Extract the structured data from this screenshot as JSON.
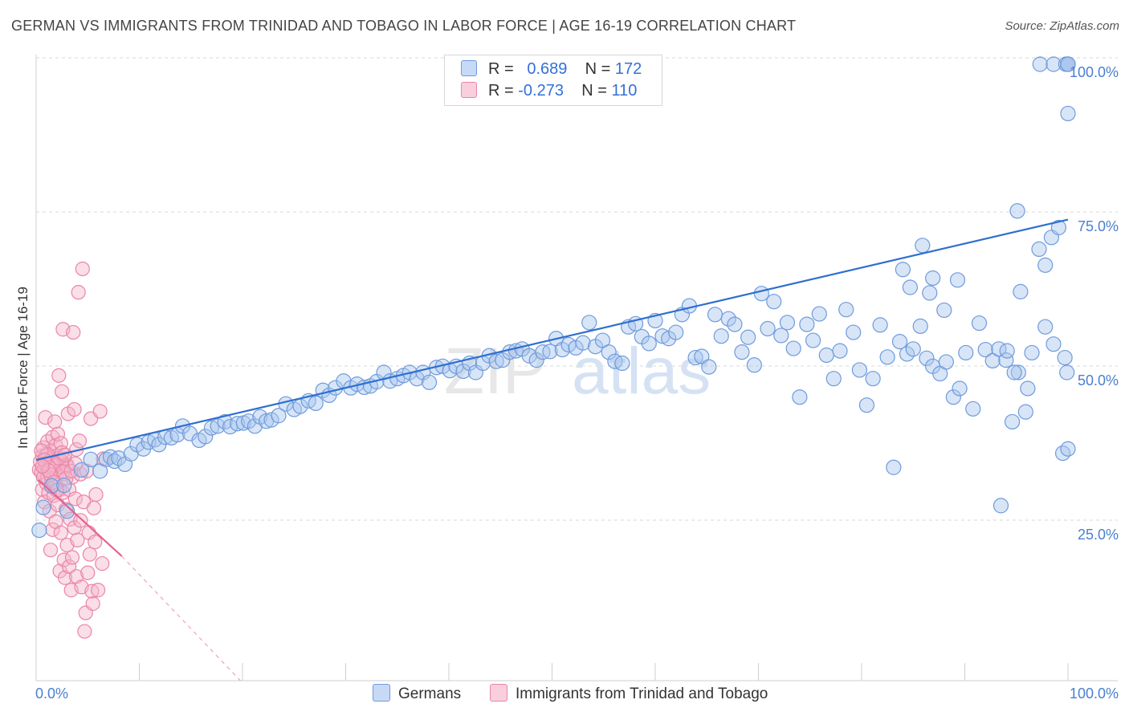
{
  "title": "GERMAN VS IMMIGRANTS FROM TRINIDAD AND TOBAGO IN LABOR FORCE | AGE 16-19 CORRELATION CHART",
  "source": "Source: ZipAtlas.com",
  "watermark": {
    "left": "ZIP",
    "right": "atlas"
  },
  "colors": {
    "blue_fill": "#a9c6ee",
    "blue_stroke": "#6e9bdc",
    "blue_line": "#2e6fd0",
    "pink_fill": "#f5b6cb",
    "pink_stroke": "#ea86a6",
    "pink_line": "#e2648d",
    "tick_label": "#4a7fd0",
    "grid": "#d9d9d9"
  },
  "legend": {
    "rows": [
      {
        "r_label": "R =",
        "r_value": "0.689",
        "n_label": "N =",
        "n_value": "172",
        "color": "#a9c6ee",
        "border": "#6e9bdc"
      },
      {
        "r_label": "R =",
        "r_value": "-0.273",
        "n_label": "N =",
        "n_value": "110",
        "color": "#f5b6cb",
        "border": "#ea86a6"
      }
    ]
  },
  "bottom_legend": [
    {
      "label": "Germans",
      "color": "#a9c6ee",
      "border": "#6e9bdc"
    },
    {
      "label": "Immigrants from Trinidad and Tobago",
      "color": "#f5b6cb",
      "border": "#ea86a6"
    }
  ],
  "chart_data": {
    "type": "scatter",
    "title": "GERMAN VS IMMIGRANTS FROM TRINIDAD AND TOBAGO IN LABOR FORCE | AGE 16-19 CORRELATION CHART",
    "xlabel": "",
    "ylabel": "In Labor Force | Age 16-19",
    "xlim": [
      0,
      100
    ],
    "ylim": [
      0,
      100
    ],
    "x_tick_labels": [
      "0.0%",
      "100.0%"
    ],
    "y_tick_labels": [
      "25.0%",
      "50.0%",
      "75.0%",
      "100.0%"
    ],
    "y_ticks": [
      25,
      50,
      75,
      100
    ],
    "grid": true,
    "legend_position": "top-center",
    "series": [
      {
        "name": "Germans",
        "r": 0.689,
        "n": 172,
        "trend": {
          "x": [
            0,
            100
          ],
          "y": [
            35.8,
            74.8
          ]
        },
        "points": [
          [
            0.3,
            24.4
          ],
          [
            0.7,
            28.1
          ],
          [
            1.5,
            31.6
          ],
          [
            2.7,
            31.7
          ],
          [
            3.0,
            27.5
          ],
          [
            4.4,
            34.2
          ],
          [
            5.3,
            35.9
          ],
          [
            6.2,
            34.0
          ],
          [
            6.8,
            35.9
          ],
          [
            7.2,
            36.3
          ],
          [
            7.6,
            35.6
          ],
          [
            8.0,
            36.1
          ],
          [
            8.6,
            35.1
          ],
          [
            9.2,
            36.8
          ],
          [
            9.8,
            38.3
          ],
          [
            10.4,
            37.6
          ],
          [
            10.9,
            38.7
          ],
          [
            11.5,
            39.1
          ],
          [
            11.9,
            38.3
          ],
          [
            12.5,
            39.5
          ],
          [
            13.1,
            39.4
          ],
          [
            13.7,
            39.9
          ],
          [
            14.2,
            41.3
          ],
          [
            14.9,
            40.1
          ],
          [
            15.8,
            39.0
          ],
          [
            16.4,
            39.6
          ],
          [
            17.0,
            41.0
          ],
          [
            17.6,
            41.3
          ],
          [
            18.3,
            42.0
          ],
          [
            18.8,
            41.2
          ],
          [
            19.5,
            41.7
          ],
          [
            20.1,
            41.8
          ],
          [
            20.6,
            42.1
          ],
          [
            21.2,
            41.3
          ],
          [
            21.7,
            42.8
          ],
          [
            22.3,
            42.1
          ],
          [
            22.8,
            42.3
          ],
          [
            23.5,
            43.0
          ],
          [
            24.2,
            44.9
          ],
          [
            25.0,
            44.0
          ],
          [
            25.6,
            44.5
          ],
          [
            26.4,
            45.4
          ],
          [
            27.1,
            45.0
          ],
          [
            27.8,
            47.1
          ],
          [
            28.4,
            46.3
          ],
          [
            29.0,
            47.5
          ],
          [
            29.8,
            48.6
          ],
          [
            30.5,
            47.5
          ],
          [
            31.1,
            48.1
          ],
          [
            31.8,
            47.6
          ],
          [
            32.4,
            47.8
          ],
          [
            33.0,
            48.5
          ],
          [
            33.7,
            50.0
          ],
          [
            34.3,
            48.6
          ],
          [
            35.0,
            49.0
          ],
          [
            35.6,
            49.5
          ],
          [
            36.2,
            50.0
          ],
          [
            36.9,
            49.0
          ],
          [
            37.5,
            50.0
          ],
          [
            38.1,
            48.4
          ],
          [
            38.8,
            50.8
          ],
          [
            39.4,
            51.0
          ],
          [
            40.1,
            50.3
          ],
          [
            40.7,
            51.0
          ],
          [
            41.4,
            50.2
          ],
          [
            42.0,
            51.5
          ],
          [
            42.6,
            50.0
          ],
          [
            43.3,
            51.5
          ],
          [
            43.9,
            52.7
          ],
          [
            44.6,
            51.8
          ],
          [
            45.2,
            52.0
          ],
          [
            45.9,
            53.3
          ],
          [
            46.5,
            53.5
          ],
          [
            47.1,
            53.8
          ],
          [
            47.8,
            52.7
          ],
          [
            48.5,
            52.0
          ],
          [
            49.1,
            53.3
          ],
          [
            49.8,
            53.4
          ],
          [
            50.4,
            55.5
          ],
          [
            51.0,
            53.7
          ],
          [
            51.6,
            54.5
          ],
          [
            52.3,
            54.0
          ],
          [
            53.0,
            54.8
          ],
          [
            53.6,
            58.1
          ],
          [
            54.2,
            54.2
          ],
          [
            54.9,
            55.2
          ],
          [
            55.5,
            53.3
          ],
          [
            56.1,
            51.8
          ],
          [
            56.8,
            51.5
          ],
          [
            57.4,
            57.4
          ],
          [
            58.1,
            57.9
          ],
          [
            58.7,
            55.8
          ],
          [
            59.4,
            54.7
          ],
          [
            60.0,
            58.4
          ],
          [
            60.7,
            55.9
          ],
          [
            61.3,
            55.5
          ],
          [
            62.0,
            56.5
          ],
          [
            62.6,
            59.4
          ],
          [
            63.3,
            60.8
          ],
          [
            63.9,
            52.4
          ],
          [
            64.5,
            52.6
          ],
          [
            65.2,
            50.9
          ],
          [
            65.8,
            59.4
          ],
          [
            66.4,
            55.9
          ],
          [
            67.1,
            58.7
          ],
          [
            67.7,
            57.8
          ],
          [
            68.4,
            53.3
          ],
          [
            69.0,
            55.7
          ],
          [
            69.6,
            51.2
          ],
          [
            70.3,
            62.8
          ],
          [
            70.9,
            57.1
          ],
          [
            71.5,
            61.5
          ],
          [
            72.2,
            56.0
          ],
          [
            72.8,
            58.1
          ],
          [
            73.4,
            53.9
          ],
          [
            74.0,
            46.0
          ],
          [
            74.7,
            57.8
          ],
          [
            75.3,
            55.2
          ],
          [
            75.9,
            59.5
          ],
          [
            76.6,
            52.8
          ],
          [
            77.3,
            49.0
          ],
          [
            77.9,
            53.5
          ],
          [
            78.5,
            60.2
          ],
          [
            79.2,
            56.5
          ],
          [
            79.8,
            50.4
          ],
          [
            80.5,
            44.7
          ],
          [
            81.1,
            49.0
          ],
          [
            81.8,
            57.7
          ],
          [
            82.5,
            52.5
          ],
          [
            83.1,
            34.6
          ],
          [
            83.7,
            55.0
          ],
          [
            84.4,
            53.0
          ],
          [
            85.0,
            53.8
          ],
          [
            85.7,
            57.5
          ],
          [
            86.3,
            52.3
          ],
          [
            86.9,
            51.0
          ],
          [
            87.6,
            49.8
          ],
          [
            88.2,
            51.7
          ],
          [
            88.9,
            46.0
          ],
          [
            89.5,
            47.4
          ],
          [
            90.1,
            53.2
          ],
          [
            90.8,
            44.1
          ],
          [
            91.4,
            58.0
          ],
          [
            92.0,
            53.7
          ],
          [
            92.7,
            51.9
          ],
          [
            93.3,
            53.8
          ],
          [
            94.0,
            52.0
          ],
          [
            94.6,
            42.0
          ],
          [
            95.2,
            50.0
          ],
          [
            95.9,
            43.6
          ],
          [
            96.5,
            53.2
          ],
          [
            97.2,
            70.0
          ],
          [
            97.8,
            67.4
          ],
          [
            98.4,
            71.9
          ],
          [
            99.1,
            73.5
          ],
          [
            99.7,
            52.4
          ],
          [
            85.9,
            70.6
          ],
          [
            86.9,
            65.3
          ],
          [
            84.0,
            66.7
          ],
          [
            84.7,
            63.8
          ],
          [
            86.6,
            62.9
          ],
          [
            88.0,
            60.1
          ],
          [
            89.3,
            65.0
          ],
          [
            95.4,
            63.1
          ],
          [
            97.8,
            57.4
          ],
          [
            98.6,
            54.6
          ],
          [
            99.5,
            36.9
          ],
          [
            100.0,
            37.6
          ],
          [
            94.1,
            53.5
          ],
          [
            93.5,
            28.4
          ],
          [
            94.8,
            50.0
          ],
          [
            96.1,
            47.4
          ],
          [
            95.1,
            76.2
          ],
          [
            99.9,
            50.0
          ],
          [
            97.3,
            100.0
          ],
          [
            98.6,
            100.0
          ],
          [
            99.8,
            100.0
          ],
          [
            100.0,
            100.0
          ],
          [
            100.0,
            100.0
          ],
          [
            100.0,
            100.0
          ],
          [
            100.0,
            100.0
          ],
          [
            100.0,
            92.0
          ]
        ]
      },
      {
        "name": "Immigrants from Trinidad and Tobago",
        "r": -0.273,
        "n": 110,
        "trend_solid": {
          "x": [
            0.2,
            8.3
          ],
          "y": [
            32.6,
            20.2
          ]
        },
        "trend_dashed": {
          "x": [
            8.3,
            19.8
          ],
          "y": [
            20.2,
            0
          ]
        },
        "points": [
          [
            0.3,
            34.2
          ],
          [
            0.4,
            35.5
          ],
          [
            0.5,
            33.8
          ],
          [
            0.6,
            36.5
          ],
          [
            0.6,
            31.0
          ],
          [
            0.7,
            37.8
          ],
          [
            0.8,
            34.5
          ],
          [
            0.8,
            29.0
          ],
          [
            0.9,
            42.7
          ],
          [
            1.0,
            35.0
          ],
          [
            1.0,
            32.0
          ],
          [
            1.1,
            38.8
          ],
          [
            1.1,
            33.0
          ],
          [
            1.2,
            36.0
          ],
          [
            1.2,
            30.5
          ],
          [
            1.3,
            34.8
          ],
          [
            1.3,
            27.5
          ],
          [
            1.4,
            37.2
          ],
          [
            1.4,
            21.2
          ],
          [
            1.5,
            35.5
          ],
          [
            1.5,
            32.5
          ],
          [
            1.6,
            39.5
          ],
          [
            1.6,
            24.5
          ],
          [
            1.7,
            36.0
          ],
          [
            1.7,
            30.0
          ],
          [
            1.8,
            42.0
          ],
          [
            1.8,
            34.0
          ],
          [
            1.9,
            38.2
          ],
          [
            1.9,
            25.8
          ],
          [
            2.0,
            36.5
          ],
          [
            2.0,
            33.0
          ],
          [
            2.1,
            40.0
          ],
          [
            2.1,
            28.5
          ],
          [
            2.2,
            35.5
          ],
          [
            2.2,
            49.5
          ],
          [
            2.3,
            31.0
          ],
          [
            2.3,
            17.8
          ],
          [
            2.4,
            38.5
          ],
          [
            2.4,
            24.0
          ],
          [
            2.5,
            34.7
          ],
          [
            2.5,
            46.9
          ],
          [
            2.6,
            57.0
          ],
          [
            2.6,
            30.5
          ],
          [
            2.7,
            36.0
          ],
          [
            2.7,
            19.6
          ],
          [
            2.8,
            33.5
          ],
          [
            2.8,
            16.7
          ],
          [
            2.9,
            27.8
          ],
          [
            3.0,
            35.0
          ],
          [
            3.0,
            22.0
          ],
          [
            3.1,
            43.3
          ],
          [
            3.2,
            31.0
          ],
          [
            3.2,
            18.5
          ],
          [
            3.3,
            26.2
          ],
          [
            3.4,
            14.7
          ],
          [
            3.5,
            33.0
          ],
          [
            3.5,
            20.0
          ],
          [
            3.6,
            56.5
          ],
          [
            3.7,
            44.0
          ],
          [
            3.7,
            24.8
          ],
          [
            3.8,
            29.5
          ],
          [
            3.9,
            37.5
          ],
          [
            3.9,
            16.9
          ],
          [
            4.0,
            22.8
          ],
          [
            4.1,
            63.0
          ],
          [
            4.2,
            38.9
          ],
          [
            4.3,
            33.5
          ],
          [
            4.3,
            26.0
          ],
          [
            4.4,
            15.2
          ],
          [
            4.5,
            66.8
          ],
          [
            4.6,
            29.0
          ],
          [
            4.7,
            8.0
          ],
          [
            4.8,
            11.0
          ],
          [
            4.9,
            34.0
          ],
          [
            5.0,
            17.5
          ],
          [
            5.1,
            24.0
          ],
          [
            5.2,
            20.5
          ],
          [
            5.3,
            42.5
          ],
          [
            5.4,
            14.5
          ],
          [
            5.5,
            12.5
          ],
          [
            5.6,
            28.0
          ],
          [
            5.7,
            22.5
          ],
          [
            5.8,
            30.2
          ],
          [
            6.0,
            14.7
          ],
          [
            6.2,
            43.7
          ],
          [
            6.4,
            19.0
          ],
          [
            6.5,
            36.0
          ],
          [
            0.9,
            36.5
          ],
          [
            1.3,
            34.6
          ],
          [
            1.8,
            34.9
          ],
          [
            2.4,
            35.6
          ],
          [
            3.0,
            34.8
          ],
          [
            1.6,
            35.0
          ],
          [
            1.1,
            36.7
          ],
          [
            0.7,
            33.0
          ],
          [
            1.9,
            31.9
          ],
          [
            2.6,
            33.9
          ],
          [
            0.5,
            37.3
          ],
          [
            2.2,
            36.1
          ],
          [
            1.4,
            33.4
          ],
          [
            2.9,
            32.8
          ],
          [
            0.8,
            35.8
          ],
          [
            3.4,
            34.0
          ],
          [
            1.7,
            32.2
          ],
          [
            2.5,
            37.0
          ],
          [
            1.2,
            34.1
          ],
          [
            3.8,
            35.2
          ],
          [
            0.6,
            34.8
          ],
          [
            2.0,
            30.9
          ],
          [
            2.8,
            36.6
          ]
        ]
      }
    ]
  }
}
